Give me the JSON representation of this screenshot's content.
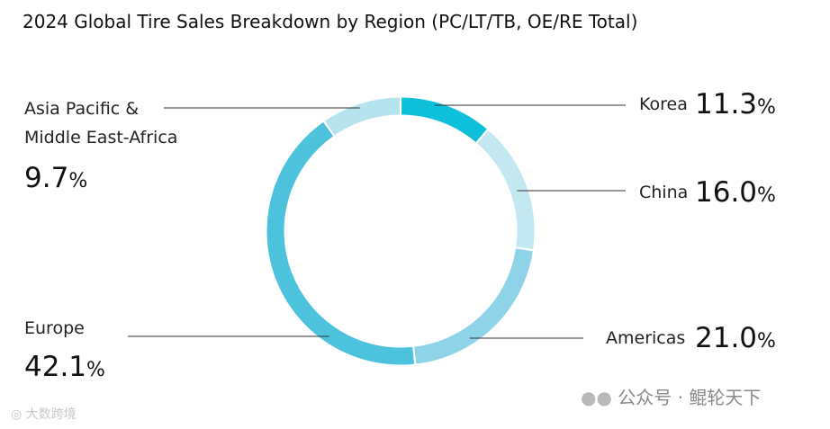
{
  "chart_data": {
    "type": "pie",
    "variant": "donut",
    "title": "2024 Global Tire Sales Breakdown by Region (PC/LT/TB, OE/RE Total)",
    "series": [
      {
        "label": "Korea",
        "value": 11.3,
        "color": "#0ebfd9"
      },
      {
        "label": "China",
        "value": 16.0,
        "color": "#c3e8f1"
      },
      {
        "label": "Americas",
        "value": 21.0,
        "color": "#8ed3e8"
      },
      {
        "label": "Europe",
        "value": 42.1,
        "color": "#4cc2dc"
      },
      {
        "label": "Asia Pacific & Middle East-Africa",
        "label_lines": [
          "Asia Pacific &",
          "Middle East-Africa"
        ],
        "value": 9.7,
        "color": "#b7e3ef"
      }
    ],
    "value_suffix": "%"
  },
  "watermarks": {
    "left_text": "大数跨境",
    "right_text": "公众号 · 鲲轮天下",
    "right_icon": "wechat-icon"
  }
}
